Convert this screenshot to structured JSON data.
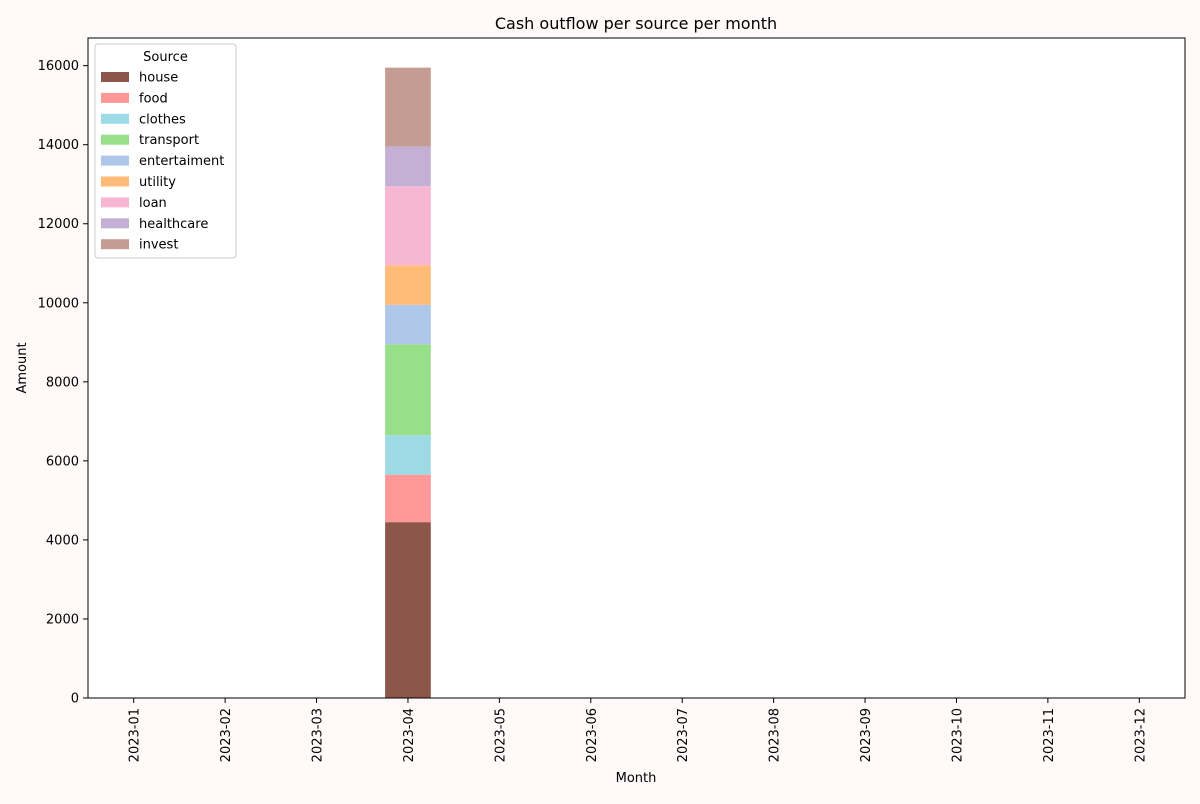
{
  "chart_data": {
    "type": "bar",
    "stacked": true,
    "title": "Cash outflow per source per month",
    "xlabel": "Month",
    "ylabel": "Amount",
    "ylim": [
      0,
      16700
    ],
    "yticks": [
      0,
      2000,
      4000,
      6000,
      8000,
      10000,
      12000,
      14000,
      16000
    ],
    "categories": [
      "2023-01",
      "2023-02",
      "2023-03",
      "2023-04",
      "2023-05",
      "2023-06",
      "2023-07",
      "2023-08",
      "2023-09",
      "2023-10",
      "2023-11",
      "2023-12"
    ],
    "legend": {
      "title": "Source",
      "position": "top-left"
    },
    "grid": false,
    "series": [
      {
        "name": "house",
        "color": "#8c564b",
        "values": [
          0,
          0,
          0,
          4450,
          0,
          0,
          0,
          0,
          0,
          0,
          0,
          0
        ]
      },
      {
        "name": "food",
        "color": "#ff9896",
        "values": [
          0,
          0,
          0,
          1200,
          0,
          0,
          0,
          0,
          0,
          0,
          0,
          0
        ]
      },
      {
        "name": "clothes",
        "color": "#9edae5",
        "values": [
          0,
          0,
          0,
          1000,
          0,
          0,
          0,
          0,
          0,
          0,
          0,
          0
        ]
      },
      {
        "name": "transport",
        "color": "#98df8a",
        "values": [
          0,
          0,
          0,
          2300,
          0,
          0,
          0,
          0,
          0,
          0,
          0,
          0
        ]
      },
      {
        "name": "entertaiment",
        "color": "#aec7e8",
        "values": [
          0,
          0,
          0,
          1000,
          0,
          0,
          0,
          0,
          0,
          0,
          0,
          0
        ]
      },
      {
        "name": "utility",
        "color": "#ffbb78",
        "values": [
          0,
          0,
          0,
          1000,
          0,
          0,
          0,
          0,
          0,
          0,
          0,
          0
        ]
      },
      {
        "name": "loan",
        "color": "#f7b6d2",
        "values": [
          0,
          0,
          0,
          2000,
          0,
          0,
          0,
          0,
          0,
          0,
          0,
          0
        ]
      },
      {
        "name": "healthcare",
        "color": "#c5b0d5",
        "values": [
          0,
          0,
          0,
          1000,
          0,
          0,
          0,
          0,
          0,
          0,
          0,
          0
        ]
      },
      {
        "name": "invest",
        "color": "#c49c94",
        "values": [
          0,
          0,
          0,
          2000,
          0,
          0,
          0,
          0,
          0,
          0,
          0,
          0
        ]
      }
    ]
  }
}
